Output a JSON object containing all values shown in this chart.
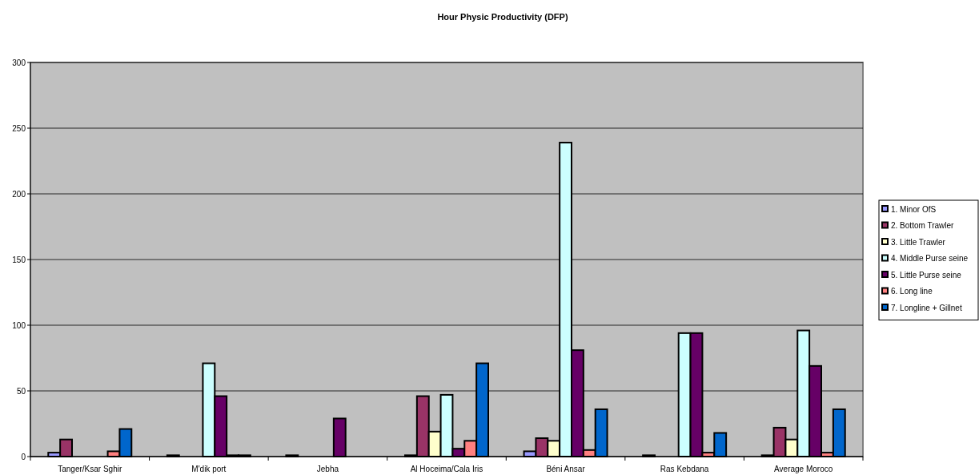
{
  "chart_data": {
    "type": "bar",
    "title": "Hour Physic Productivity (DFP)",
    "categories": [
      "Tanger/Ksar Sghir",
      "M'dik port",
      "Jebha",
      "Al Hoceima/Cala Iris",
      "Béni Ansar",
      "Ras Kebdana",
      "Average Moroco"
    ],
    "series": [
      {
        "name": "1. Minor  OfS",
        "color": "#9999ff",
        "values": [
          3,
          1,
          1,
          1,
          4,
          1,
          1
        ]
      },
      {
        "name": "2. Bottom Trawler",
        "color": "#993366",
        "values": [
          13,
          0,
          0,
          46,
          14,
          0,
          22
        ]
      },
      {
        "name": "3. Little Trawler",
        "color": "#ffffcc",
        "values": [
          0,
          0,
          0,
          19,
          12,
          0,
          13
        ]
      },
      {
        "name": "4. Middle Purse seine",
        "color": "#ccffff",
        "values": [
          0,
          71,
          0,
          47,
          239,
          94,
          96
        ]
      },
      {
        "name": "5. Little Purse seine",
        "color": "#660066",
        "values": [
          0,
          46,
          29,
          6,
          81,
          94,
          69
        ]
      },
      {
        "name": "6. Long line",
        "color": "#ff8080",
        "values": [
          4,
          1,
          0,
          12,
          5,
          3,
          3
        ]
      },
      {
        "name": "7. Longline + Gillnet",
        "color": "#0066cc",
        "values": [
          21,
          1,
          0,
          71,
          36,
          18,
          36
        ]
      }
    ],
    "ylim": [
      0,
      300
    ],
    "yticks": [
      0,
      50,
      100,
      150,
      200,
      250,
      300
    ],
    "grid": "y",
    "legend": "right"
  }
}
